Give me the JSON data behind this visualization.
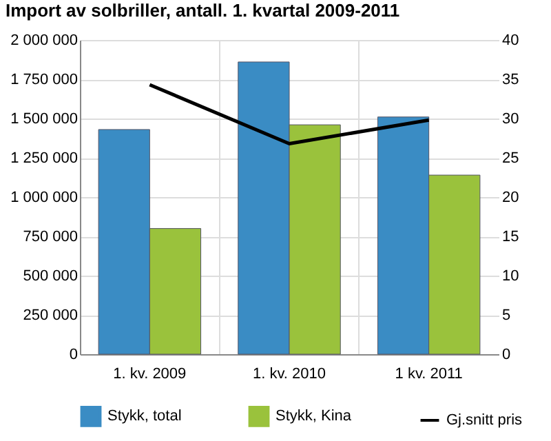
{
  "chart_data": {
    "type": "bar",
    "title": "Import av solbriller, antall. 1. kvartal 2009-2011",
    "categories": [
      "1. kv. 2009",
      "1. kv. 2010",
      "1 kv. 2011"
    ],
    "series": [
      {
        "name": "Stykk, total",
        "color": "#3a8cc4",
        "values": [
          1430000,
          1860000,
          1510000
        ]
      },
      {
        "name": "Stykk, Kina",
        "color": "#9ac23c",
        "values": [
          800000,
          1460000,
          1140000
        ]
      },
      {
        "name": "Gj.snitt pris",
        "type": "line",
        "axis": "y2",
        "color": "#000000",
        "values": [
          34.3,
          26.8,
          29.8
        ]
      }
    ],
    "ylim": [
      0,
      2000000
    ],
    "yticks": [
      0,
      {
        "value": 250000,
        "label": "250 000"
      },
      {
        "value": 500000,
        "label": "500 000"
      },
      {
        "value": 750000,
        "label": "750 000"
      },
      {
        "value": 1000000,
        "label": "1 000 000"
      },
      {
        "value": 1250000,
        "label": "1 250 000"
      },
      {
        "value": 1500000,
        "label": "1 500 000"
      },
      {
        "value": 1750000,
        "label": "1 750 000"
      },
      {
        "value": 2000000,
        "label": "2 000 000"
      }
    ],
    "y2lim": [
      0,
      40
    ],
    "y2ticks": [
      0,
      5,
      10,
      15,
      20,
      25,
      30,
      35,
      40
    ],
    "grid": true,
    "legend": "bottom"
  }
}
